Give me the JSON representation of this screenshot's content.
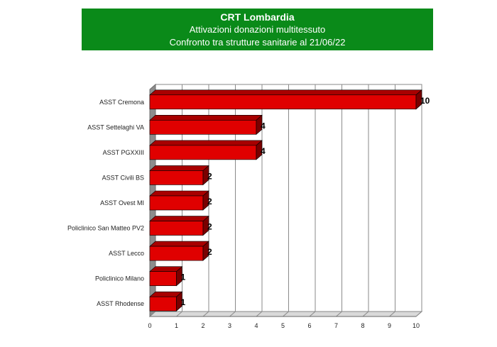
{
  "header": {
    "title": "CRT Lombardia",
    "subtitle1": "Attivazioni  donazioni multitessuto",
    "subtitle2": "Confronto tra strutture sanitarie al 21/06/22"
  },
  "colors": {
    "header_bg": "#0a8a19",
    "bar_front": "#e00000",
    "bar_top": "#a80000",
    "bar_side": "#7a0000"
  },
  "chart_data": {
    "type": "bar",
    "orientation": "horizontal",
    "categories": [
      "ASST Cremona",
      "ASST Settelaghi VA",
      "ASST PGXXIII",
      "ASST Civili BS",
      "ASST Ovest MI",
      "Policlinico San Matteo PV2",
      "ASST Lecco",
      "Policlinico Milano",
      "ASST Rhodense"
    ],
    "values": [
      10,
      4,
      4,
      2,
      2,
      2,
      2,
      1,
      1
    ],
    "xlim": [
      0,
      10
    ],
    "xticks": [
      "0",
      "1",
      "2",
      "3",
      "4",
      "5",
      "6",
      "7",
      "8",
      "9",
      "10"
    ],
    "grid": true,
    "data_labels": true
  }
}
